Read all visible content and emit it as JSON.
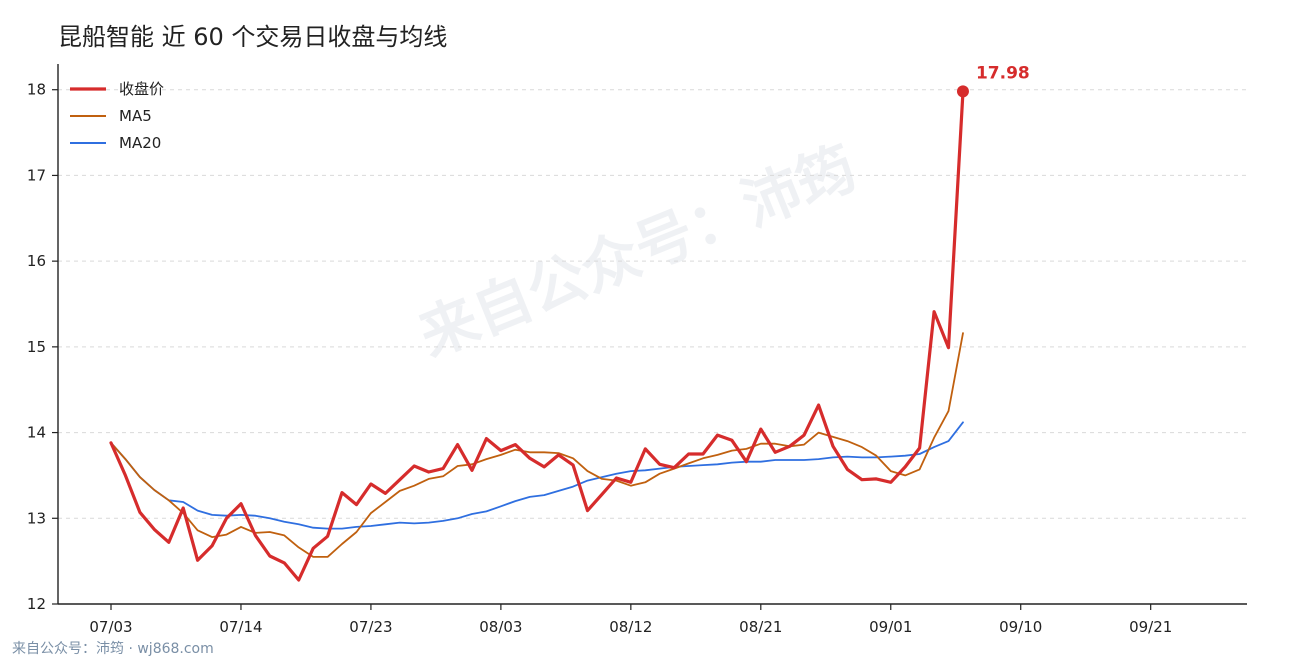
{
  "title": "昆船智能 近 60 个交易日收盘与均线",
  "watermark": "来自公众号：沛筠",
  "footer": "来自公众号：沛筠 · wj868.com",
  "colors": {
    "close": "#d62c2c",
    "ma5": "#c0600f",
    "ma20": "#2f6fe0",
    "grid": "#d9d9d9"
  },
  "chart_data": {
    "type": "line",
    "xlabel": "",
    "ylabel": "",
    "ylim": [
      12,
      18.3
    ],
    "y_ticks": [
      12,
      13,
      14,
      15,
      16,
      17,
      18
    ],
    "x_tick_labels": [
      "07/03",
      "07/14",
      "07/23",
      "08/03",
      "08/12",
      "08/21",
      "09/01",
      "09/10",
      "09/21"
    ],
    "x_tick_index": [
      0,
      9,
      18,
      27,
      36,
      45,
      54,
      63,
      72
    ],
    "grid": "horizontal dashed",
    "legend_position": "top-left",
    "last_value_label": "17.98",
    "series": [
      {
        "name": "收盘价",
        "key": "close",
        "values": [
          13.88,
          13.5,
          13.07,
          12.87,
          12.72,
          13.12,
          12.51,
          12.68,
          13.0,
          13.17,
          12.8,
          12.56,
          12.48,
          12.28,
          12.65,
          12.79,
          13.3,
          13.16,
          13.4,
          13.29,
          13.45,
          13.61,
          13.54,
          13.58,
          13.86,
          13.56,
          13.93,
          13.79,
          13.86,
          13.7,
          13.6,
          13.74,
          13.62,
          13.09,
          13.28,
          13.47,
          13.42,
          13.81,
          13.63,
          13.59,
          13.75,
          13.75,
          13.97,
          13.91,
          13.66,
          14.04,
          13.77,
          13.84,
          13.97,
          14.32,
          13.84,
          13.57,
          13.45,
          13.46,
          13.42,
          13.6,
          13.82,
          15.41,
          14.99,
          17.98
        ]
      },
      {
        "name": "MA5",
        "key": "ma5",
        "values": [
          13.88,
          13.69,
          13.48,
          13.33,
          13.21,
          13.06,
          12.86,
          12.78,
          12.81,
          12.9,
          12.83,
          12.84,
          12.8,
          12.66,
          12.55,
          12.55,
          12.7,
          12.84,
          13.06,
          13.19,
          13.32,
          13.38,
          13.46,
          13.49,
          13.61,
          13.63,
          13.69,
          13.74,
          13.8,
          13.77,
          13.77,
          13.76,
          13.7,
          13.55,
          13.46,
          13.44,
          13.38,
          13.42,
          13.52,
          13.58,
          13.64,
          13.7,
          13.74,
          13.79,
          13.81,
          13.87,
          13.87,
          13.84,
          13.86,
          14.0,
          13.95,
          13.9,
          13.83,
          13.73,
          13.55,
          13.5,
          13.57,
          13.94,
          14.25,
          15.16
        ]
      },
      {
        "name": "MA20",
        "key": "ma20",
        "values": [
          13.88,
          13.69,
          13.48,
          13.33,
          13.21,
          13.19,
          13.09,
          13.04,
          13.03,
          13.04,
          13.03,
          13.0,
          12.96,
          12.93,
          12.89,
          12.88,
          12.88,
          12.9,
          12.91,
          12.93,
          12.95,
          12.94,
          12.95,
          12.97,
          13.0,
          13.05,
          13.08,
          13.14,
          13.2,
          13.25,
          13.27,
          13.32,
          13.37,
          13.44,
          13.48,
          13.52,
          13.55,
          13.56,
          13.58,
          13.6,
          13.61,
          13.62,
          13.63,
          13.65,
          13.66,
          13.66,
          13.68,
          13.68,
          13.68,
          13.69,
          13.71,
          13.72,
          13.71,
          13.71,
          13.72,
          13.73,
          13.75,
          13.83,
          13.9,
          14.12
        ]
      }
    ]
  }
}
